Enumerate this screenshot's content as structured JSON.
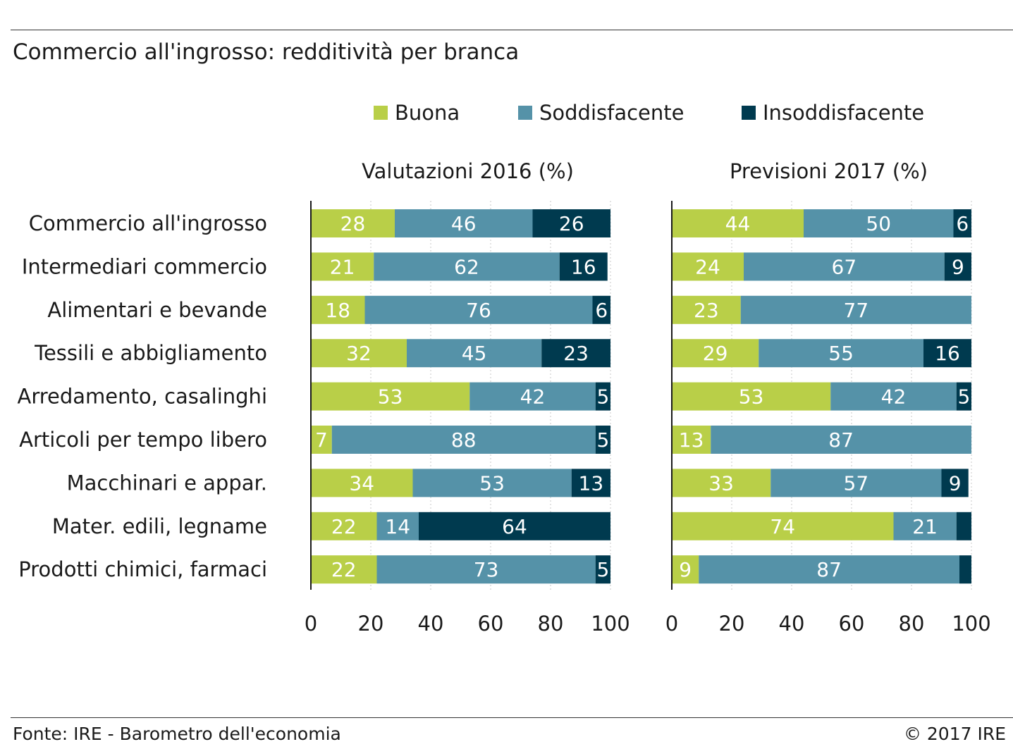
{
  "title": "Commercio all'ingrosso: redditività per branca",
  "legend": [
    {
      "label": "Buona",
      "color": "#b9cf48"
    },
    {
      "label": "Soddisfacente",
      "color": "#5592a8"
    },
    {
      "label": "Insoddisfacente",
      "color": "#003a4f"
    }
  ],
  "footer": {
    "source": "Fonte: IRE - Barometro dell'economia",
    "copyright": "© 2017 IRE"
  },
  "chart_data": {
    "type": "bar",
    "orientation": "horizontal",
    "stacked": true,
    "categories": [
      "Commercio all'ingrosso",
      "Intermediari commercio",
      "Alimentari e bevande",
      "Tessili e abbigliamento",
      "Arredamento, casalinghi",
      "Articoli per tempo libero",
      "Macchinari e appar.",
      "Mater. edili, legname",
      "Prodotti chimici, farmaci"
    ],
    "xlim": [
      0,
      100
    ],
    "xticks": [
      0,
      20,
      40,
      60,
      80,
      100
    ],
    "grid": true,
    "panels": [
      {
        "title": "Valutazioni 2016 (%)",
        "series": [
          {
            "name": "Buona",
            "values": [
              28,
              21,
              18,
              32,
              53,
              7,
              34,
              22,
              22
            ],
            "labels": [
              "28",
              "21",
              "18",
              "32",
              "53",
              "7",
              "34",
              "22",
              "22"
            ]
          },
          {
            "name": "Soddisfacente",
            "values": [
              46,
              62,
              76,
              45,
              42,
              88,
              53,
              14,
              73
            ],
            "labels": [
              "46",
              "62",
              "76",
              "45",
              "42",
              "88",
              "53",
              "14",
              "73"
            ]
          },
          {
            "name": "Insoddisfacente",
            "values": [
              26,
              16,
              6,
              23,
              5,
              5,
              13,
              64,
              5
            ],
            "labels": [
              "26",
              "16",
              "6",
              "23",
              "5",
              "5",
              "13",
              "64",
              "5"
            ]
          }
        ]
      },
      {
        "title": "Previsioni 2017 (%)",
        "series": [
          {
            "name": "Buona",
            "values": [
              44,
              24,
              23,
              29,
              53,
              13,
              33,
              74,
              9
            ],
            "labels": [
              "44",
              "24",
              "23",
              "29",
              "53",
              "13",
              "33",
              "74",
              "9"
            ]
          },
          {
            "name": "Soddisfacente",
            "values": [
              50,
              67,
              77,
              55,
              42,
              87,
              57,
              21,
              87
            ],
            "labels": [
              "50",
              "67",
              "77",
              "55",
              "42",
              "87",
              "57",
              "21",
              "87"
            ]
          },
          {
            "name": "Insoddisfacente",
            "values": [
              6,
              9,
              0,
              16,
              5,
              0,
              9,
              5,
              4
            ],
            "labels": [
              "6",
              "9",
              "",
              "16",
              "5",
              "",
              "9",
              "",
              ""
            ]
          }
        ]
      }
    ]
  }
}
